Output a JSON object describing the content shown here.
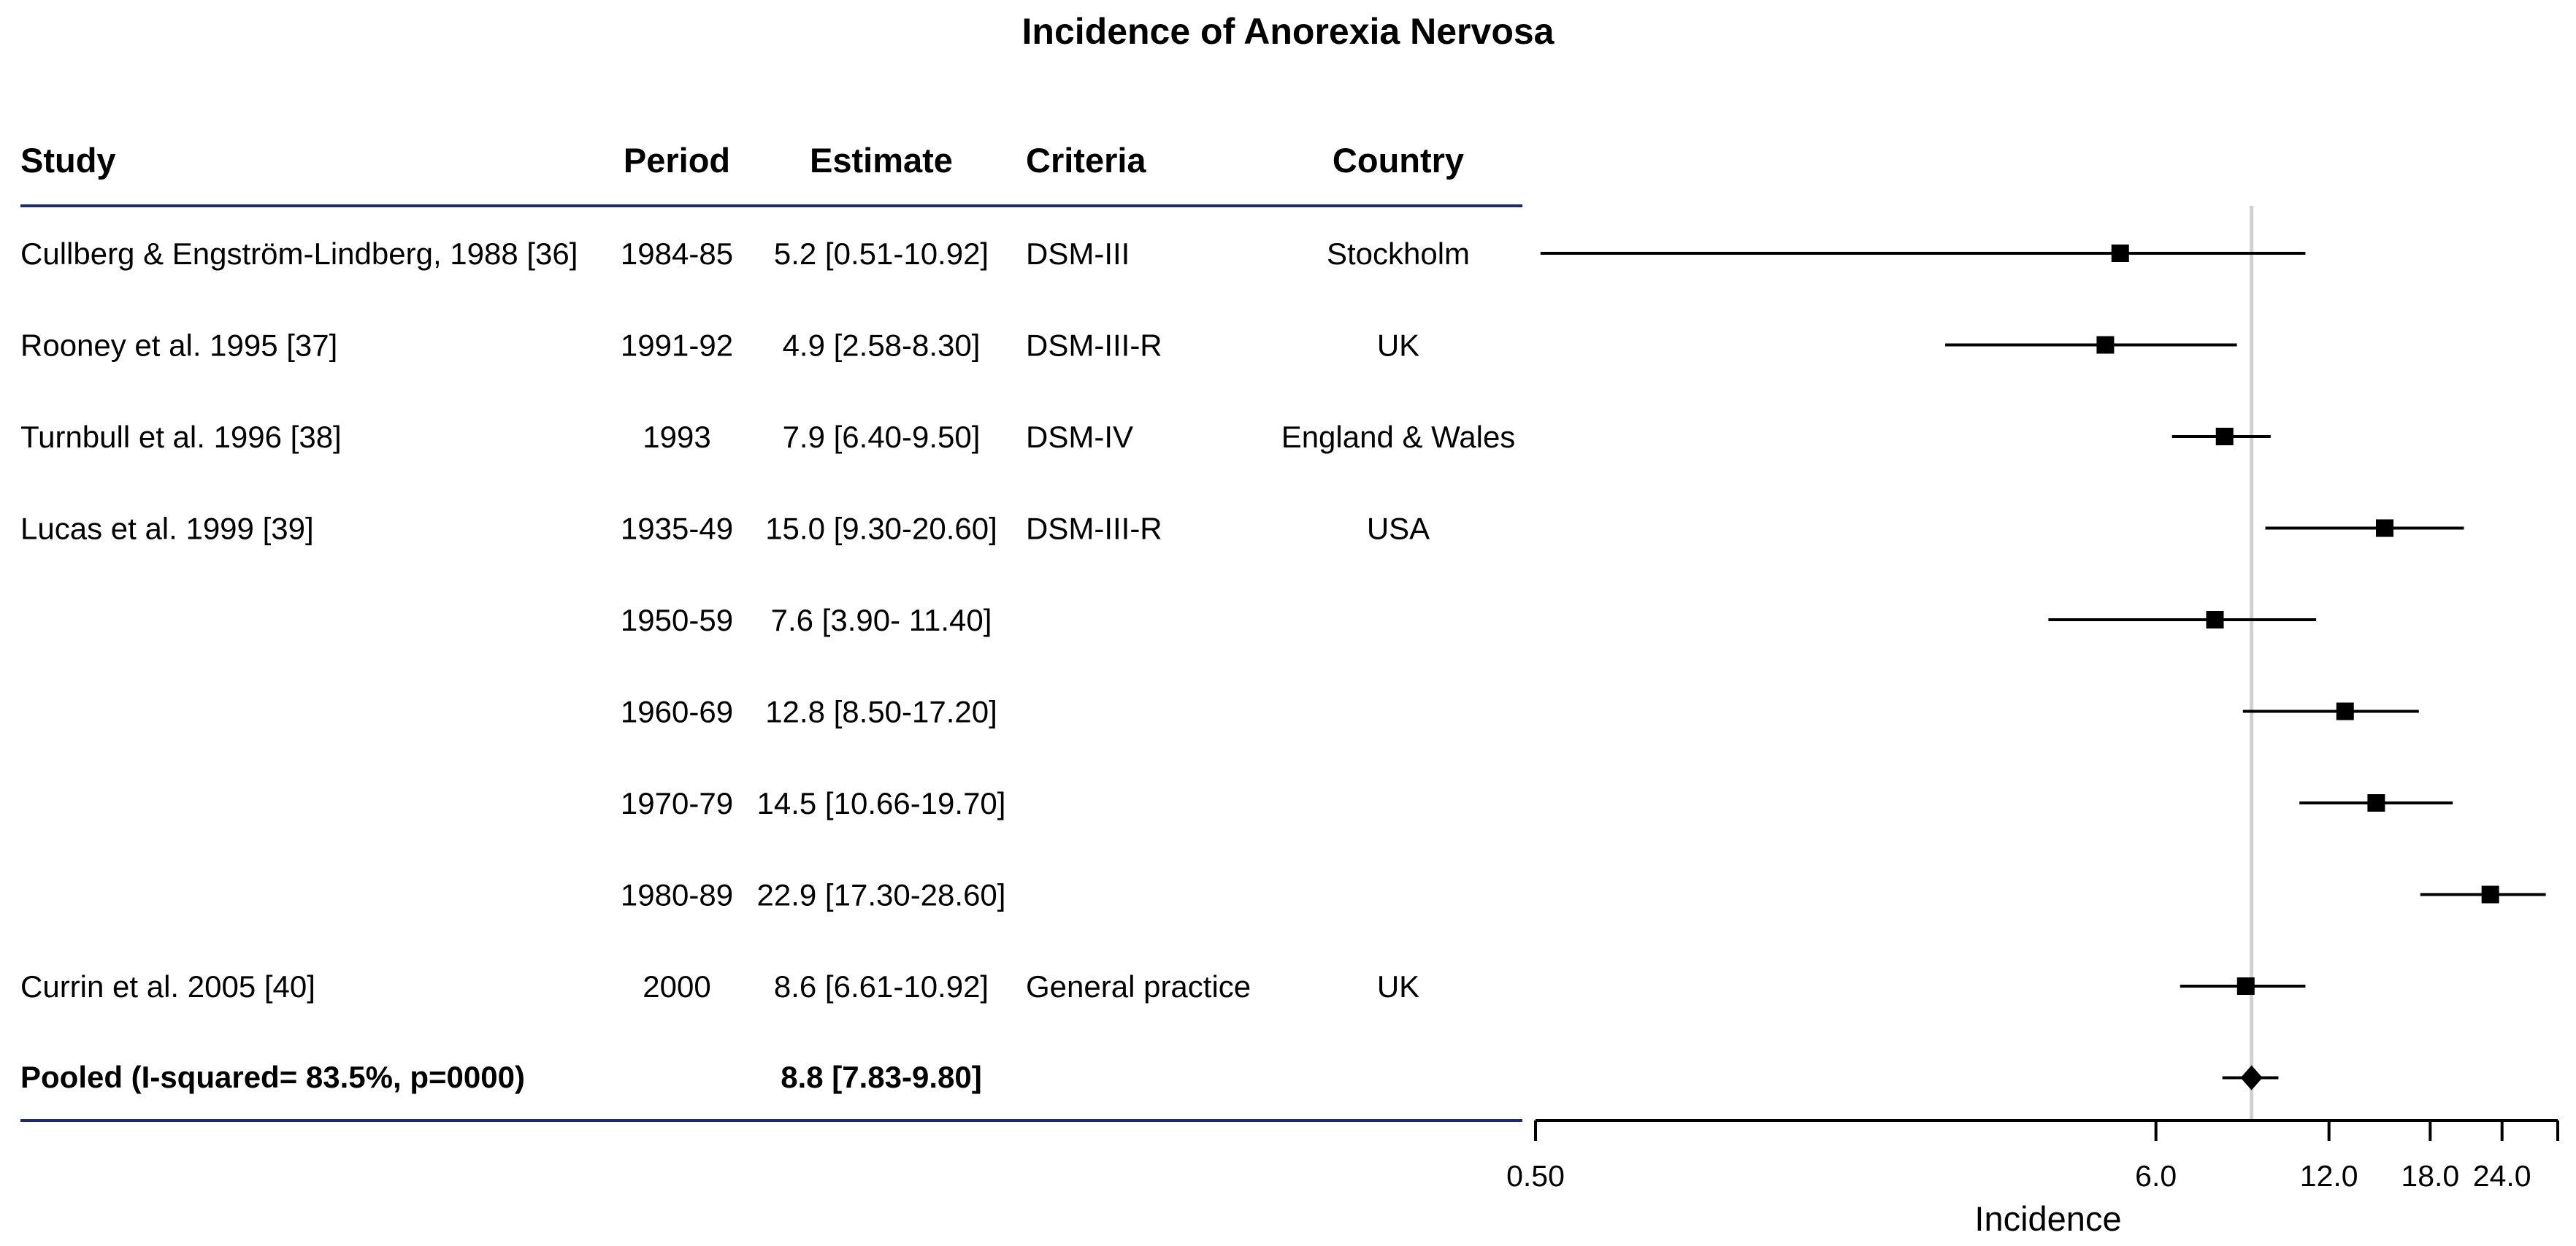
{
  "chart_data": {
    "type": "forest",
    "title": "Incidence of Anorexia Nervosa",
    "xlabel": "Incidence",
    "x_scale": "log",
    "xlim": [
      0.5,
      30
    ],
    "x_ticks": [
      {
        "value": 0.5,
        "label": "0.50"
      },
      {
        "value": 6.0,
        "label": "6.0"
      },
      {
        "value": 12.0,
        "label": "12.0"
      },
      {
        "value": 18.0,
        "label": "18.0"
      },
      {
        "value": 24.0,
        "label": "24.0"
      }
    ],
    "reference_line": 8.8,
    "columns": [
      "Study",
      "Period",
      "Estimate",
      "Criteria",
      "Country"
    ],
    "rows": [
      {
        "study": "Cullberg & Engström-Lindberg, 1988 [36]",
        "period": "1984-85",
        "estimate_text": "5.2 [0.51-10.92]",
        "criteria": "DSM-III",
        "country": "Stockholm",
        "estimate": 5.2,
        "lower": 0.51,
        "upper": 10.92
      },
      {
        "study": "Rooney et al. 1995 [37]",
        "period": "1991-92",
        "estimate_text": "4.9 [2.58-8.30]",
        "criteria": "DSM-III-R",
        "country": "UK",
        "estimate": 4.9,
        "lower": 2.58,
        "upper": 8.3
      },
      {
        "study": "Turnbull et al. 1996 [38]",
        "period": "1993",
        "estimate_text": "7.9 [6.40-9.50]",
        "criteria": "DSM-IV",
        "country": "England & Wales",
        "estimate": 7.9,
        "lower": 6.4,
        "upper": 9.5
      },
      {
        "study": "Lucas et al. 1999 [39]",
        "period": "1935-49",
        "estimate_text": "15.0 [9.30-20.60]",
        "criteria": "DSM-III-R",
        "country": "USA",
        "estimate": 15.0,
        "lower": 9.3,
        "upper": 20.6
      },
      {
        "study": "",
        "period": "1950-59",
        "estimate_text": "7.6 [3.90- 11.40]",
        "criteria": "",
        "country": "",
        "estimate": 7.6,
        "lower": 3.9,
        "upper": 11.4
      },
      {
        "study": "",
        "period": "1960-69",
        "estimate_text": "12.8 [8.50-17.20]",
        "criteria": "",
        "country": "",
        "estimate": 12.8,
        "lower": 8.5,
        "upper": 17.2
      },
      {
        "study": "",
        "period": "1970-79",
        "estimate_text": "14.5 [10.66-19.70]",
        "criteria": "",
        "country": "",
        "estimate": 14.5,
        "lower": 10.66,
        "upper": 19.7
      },
      {
        "study": "",
        "period": "1980-89",
        "estimate_text": "22.9 [17.30-28.60]",
        "criteria": "",
        "country": "",
        "estimate": 22.9,
        "lower": 17.3,
        "upper": 28.6
      },
      {
        "study": "Currin et al. 2005 [40]",
        "period": "2000",
        "estimate_text": "8.6 [6.61-10.92]",
        "criteria": "General practice",
        "country": "UK",
        "estimate": 8.6,
        "lower": 6.61,
        "upper": 10.92
      }
    ],
    "pooled": {
      "label": "Pooled (I-squared= 83.5%, p=0000)",
      "estimate_text": "8.8 [7.83-9.80]",
      "estimate": 8.8,
      "lower": 7.83,
      "upper": 9.8
    },
    "colors": {
      "rule": "#1f2a6b",
      "reference": "#d0d0d0",
      "marker": "#000000"
    }
  }
}
